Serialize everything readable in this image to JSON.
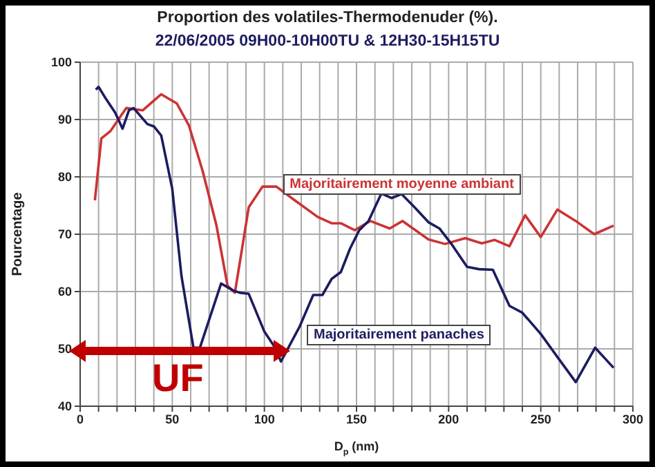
{
  "chart_data": {
    "type": "line",
    "title": "Proportion des volatiles-Thermodenuder (%).",
    "subtitle": "22/06/2005 09H00-10H00TU & 12H30-15H15TU",
    "xlabel": "D$_{p}$ (nm)",
    "ylabel": "Pourcentage",
    "annotations": [
      "UF"
    ],
    "xlim": [
      0,
      300
    ],
    "xticks": [
      0,
      {
        "value": 10,
        "label": null
      },
      {
        "value": 20,
        "label": null
      },
      {
        "value": 30,
        "label": null
      },
      {
        "value": 40,
        "label": null
      },
      50,
      {
        "value": 60,
        "label": null
      },
      {
        "value": 70,
        "label": null
      },
      {
        "value": 80,
        "label": null
      },
      {
        "value": 90,
        "label": null
      },
      100,
      {
        "value": 110,
        "label": null
      },
      {
        "value": 120,
        "label": null
      },
      {
        "value": 130,
        "label": null
      },
      {
        "value": 140,
        "label": null
      },
      150,
      {
        "value": 160,
        "label": null
      },
      {
        "value": 170,
        "label": null
      },
      {
        "value": 180,
        "label": null
      },
      {
        "value": 190,
        "label": null
      },
      200,
      {
        "value": 210,
        "label": null
      },
      {
        "value": 220,
        "label": null
      },
      {
        "value": 230,
        "label": null
      },
      {
        "value": 240,
        "label": null
      },
      250,
      {
        "value": 260,
        "label": null
      },
      {
        "value": 270,
        "label": null
      },
      {
        "value": 280,
        "label": null
      },
      {
        "value": 290,
        "label": null
      },
      300
    ],
    "ylim": [
      40,
      100
    ],
    "yticks": [
      40,
      50,
      60,
      70,
      80,
      90,
      100
    ],
    "grid": true,
    "marker": "none",
    "line_style": "solid",
    "series": [
      {
        "name": "Majoritairement moyenne ambiant",
        "color": "#cc3333",
        "x": [
          8,
          11.5,
          16.5,
          25,
          34,
          44,
          52.5,
          59,
          66.5,
          74,
          80,
          84,
          91.5,
          99,
          106.5,
          116.5,
          129,
          136.5,
          141.5,
          149,
          157.5,
          168,
          175,
          189,
          198,
          209,
          218,
          225,
          233,
          241.5,
          250,
          259,
          269,
          279,
          289.5
        ],
        "values": [
          75.9,
          86.7,
          88,
          92,
          91.6,
          94.4,
          92.8,
          89,
          81,
          71.5,
          61,
          59.8,
          74.7,
          78.3,
          78.3,
          75.9,
          73,
          71.9,
          71.9,
          70.7,
          72.3,
          71,
          72.3,
          69.1,
          68.3,
          69.3,
          68.4,
          69,
          67.9,
          73.3,
          69.5,
          74.3,
          72.3,
          70,
          71.5
        ]
      },
      {
        "name": "Majoritairement panaches",
        "color": "#1c1c60",
        "x": [
          8.5,
          10,
          14,
          19,
          23,
          26.5,
          29,
          36.5,
          40,
          44,
          50,
          55,
          61.5,
          65,
          76.5,
          83,
          86.5,
          91.5,
          100,
          105,
          109,
          119,
          126.5,
          131.5,
          136.5,
          141.5,
          146.5,
          151.5,
          156.5,
          163.5,
          169,
          174.5,
          181.5,
          189,
          195,
          201.5,
          210,
          216.5,
          224,
          233,
          240,
          250,
          259,
          269,
          279.5,
          289.5
        ],
        "values": [
          95.2,
          95.7,
          93.6,
          91.2,
          88.4,
          91.6,
          92,
          89.2,
          88.8,
          87.2,
          77.9,
          62.7,
          50.2,
          50.2,
          61.4,
          60.2,
          59.8,
          59.6,
          53,
          50.6,
          47.8,
          53.8,
          59.4,
          59.4,
          62.2,
          63.4,
          67.5,
          70.7,
          72.3,
          77.1,
          76.3,
          77,
          74.7,
          72.1,
          71,
          68.3,
          64.3,
          63.9,
          63.8,
          57.5,
          56.3,
          52.6,
          48.6,
          44.2,
          50.2,
          46.7
        ]
      }
    ]
  }
}
